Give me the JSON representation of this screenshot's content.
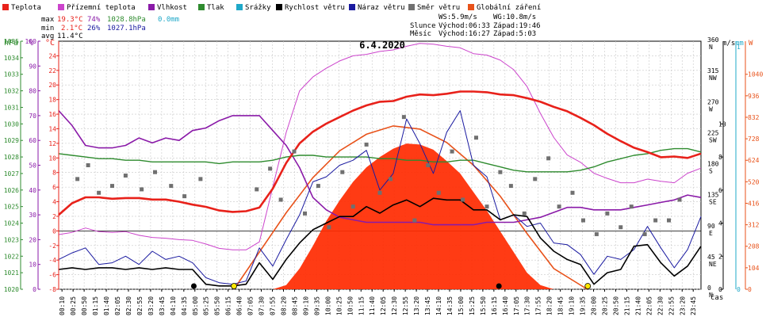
{
  "chart_data": {
    "type": "line",
    "title": "6.4.2020",
    "legend": [
      {
        "label": "Teplota",
        "color": "#e8211a"
      },
      {
        "label": "Přízemní teplota",
        "color": "#cc44cc"
      },
      {
        "label": "Vlhkost",
        "color": "#8a1aa8"
      },
      {
        "label": "Tlak",
        "color": "#2e8b2e"
      },
      {
        "label": "Srážky",
        "color": "#1fa8c8"
      },
      {
        "label": "Rychlost větru",
        "color": "#000000"
      },
      {
        "label": "Náraz větru",
        "color": "#1a1aa0"
      },
      {
        "label": "Směr větru",
        "color": "#707070"
      },
      {
        "label": "Globální záření",
        "color": "#e8521a"
      }
    ],
    "stats": {
      "max_label": "max",
      "min_label": "min",
      "avg_label": "avg",
      "temp_max": "19.3°C",
      "temp_min": "2.1°C",
      "temp_avg": "11.4°C",
      "hum_max": "74%",
      "hum_min": "26%",
      "press_max": "1028.8hPa",
      "press_min": "1027.1hPa",
      "rain": "0.0mm"
    },
    "wind_stats": {
      "ws": "WS:5.9m/s",
      "wg": "WG:10.8m/s"
    },
    "sun_moon": {
      "sun": "Slunce",
      "moon": "Měsíc",
      "sun_rise": "Východ:06:33",
      "sun_set": "Západ:19:46",
      "moon_rise": "Východ:16:27",
      "moon_set": "Západ:5:03"
    },
    "axis_units": {
      "hpa": "hPa",
      "pct": "%",
      "degc": "°C",
      "ms": "m/s",
      "mm": "mm",
      "watt": "W",
      "time": "čas"
    },
    "ylim_temp": [
      -8,
      26
    ],
    "ylim_pressure": [
      1020,
      1035
    ],
    "ylim_humidity": [
      0,
      100
    ],
    "ylim_wind": [
      0,
      15
    ],
    "ylim_direction": [
      0,
      360
    ],
    "ylim_radiation": [
      0,
      1200
    ],
    "temp_ticks": [
      "-8",
      "-6",
      "-4",
      "-2",
      "0",
      "2",
      "4",
      "6",
      "8",
      "10",
      "12",
      "14",
      "16",
      "18",
      "20",
      "22",
      "24"
    ],
    "pressure_ticks": [
      "1020",
      "1021",
      "1022",
      "1023",
      "1024",
      "1025",
      "1026",
      "1027",
      "1028",
      "1029",
      "1030",
      "1031",
      "1032",
      "1033",
      "1034",
      "1035"
    ],
    "humidity_ticks": [
      "0",
      "10",
      "20",
      "30",
      "40",
      "50",
      "60",
      "70",
      "80",
      "90",
      "100"
    ],
    "wind_ticks": [
      "0",
      "2",
      "4",
      "6",
      "8",
      "10"
    ],
    "mm_ticks": [
      "0",
      "1"
    ],
    "direction_ticks": [
      {
        "deg": "0",
        "dir": "N"
      },
      {
        "deg": "45",
        "dir": "NE"
      },
      {
        "deg": "90",
        "dir": "E"
      },
      {
        "deg": "135",
        "dir": "SE"
      },
      {
        "deg": "180",
        "dir": "S"
      },
      {
        "deg": "225",
        "dir": "SW"
      },
      {
        "deg": "270",
        "dir": "W"
      },
      {
        "deg": "315",
        "dir": "NW"
      },
      {
        "deg": "360",
        "dir": "N"
      }
    ],
    "radiation_ticks": [
      "0",
      "104",
      "208",
      "312",
      "416",
      "520",
      "624",
      "728",
      "832",
      "936",
      "1040"
    ],
    "time_labels": [
      "00:10",
      "00:25",
      "00:50",
      "01:15",
      "01:40",
      "02:05",
      "02:30",
      "02:55",
      "03:20",
      "03:45",
      "04:10",
      "04:35",
      "05:00",
      "05:25",
      "05:50",
      "06:15",
      "06:40",
      "07:05",
      "07:30",
      "07:55",
      "08:20",
      "08:45",
      "09:10",
      "09:35",
      "10:00",
      "10:25",
      "10:50",
      "11:15",
      "11:40",
      "12:05",
      "12:30",
      "12:55",
      "13:20",
      "13:45",
      "14:10",
      "14:35",
      "15:00",
      "15:25",
      "15:50",
      "16:15",
      "16:40",
      "17:05",
      "17:30",
      "17:55",
      "18:20",
      "18:45",
      "19:10",
      "19:35",
      "20:00",
      "20:25",
      "20:50",
      "21:15",
      "21:40",
      "22:05",
      "22:30",
      "22:55",
      "23:20",
      "23:45"
    ],
    "x_hours": [
      0,
      0.5,
      1,
      1.5,
      2,
      2.5,
      3,
      3.5,
      4,
      4.5,
      5,
      5.5,
      6,
      6.5,
      7,
      7.5,
      8,
      8.5,
      9,
      9.5,
      10,
      10.5,
      11,
      11.5,
      12,
      12.5,
      13,
      13.5,
      14,
      14.5,
      15,
      15.5,
      16,
      16.5,
      17,
      17.5,
      18,
      18.5,
      19,
      19.5,
      20,
      20.5,
      21,
      21.5,
      22,
      22.5,
      23,
      23.5,
      24
    ],
    "series": [
      {
        "name": "Teplota",
        "axis": "temp",
        "values": [
          2.2,
          3.8,
          4.6,
          4.6,
          4.4,
          4.5,
          4.5,
          4.3,
          4.3,
          4.0,
          3.6,
          3.3,
          2.8,
          2.6,
          2.7,
          3.2,
          5.8,
          9.3,
          12.0,
          13.6,
          14.7,
          15.6,
          16.5,
          17.2,
          17.7,
          17.8,
          18.4,
          18.7,
          18.6,
          18.8,
          19.1,
          19.1,
          19.0,
          18.7,
          18.6,
          18.2,
          17.7,
          17.0,
          16.4,
          15.5,
          14.5,
          13.3,
          12.3,
          11.4,
          10.8,
          10.1,
          10.2,
          10.0,
          10.6
        ]
      },
      {
        "name": "Přízemní teplota",
        "axis": "temp",
        "values": [
          -0.5,
          -0.2,
          0.4,
          -0.1,
          -0.2,
          -0.1,
          -0.6,
          -0.9,
          -1.0,
          -1.2,
          -1.3,
          -1.8,
          -2.4,
          -2.6,
          -2.6,
          -1.5,
          6.0,
          13.5,
          19.2,
          21.1,
          22.3,
          23.3,
          24.0,
          24.2,
          24.6,
          24.8,
          25.3,
          25.7,
          25.6,
          25.3,
          25.1,
          24.3,
          24.1,
          23.4,
          22.1,
          19.8,
          16.1,
          12.8,
          10.4,
          9.4,
          7.9,
          7.2,
          6.6,
          6.6,
          7.1,
          6.8,
          6.6,
          7.9,
          8.6
        ]
      },
      {
        "name": "Vlhkost",
        "axis": "hum",
        "values": [
          72,
          66,
          58,
          57,
          57,
          58,
          61,
          59,
          61,
          60,
          64,
          65,
          68,
          70,
          70,
          70,
          64,
          58,
          49,
          37,
          32,
          29,
          28,
          27,
          27,
          27,
          27,
          27,
          26,
          26,
          26,
          26,
          27,
          27,
          27,
          28,
          29,
          31,
          33,
          33,
          32,
          32,
          32,
          33,
          34,
          35,
          36,
          38,
          37
        ]
      },
      {
        "name": "Tlak",
        "axis": "hpa",
        "values": [
          1028.2,
          1028.1,
          1028.0,
          1027.9,
          1027.9,
          1027.8,
          1027.8,
          1027.7,
          1027.7,
          1027.7,
          1027.7,
          1027.7,
          1027.6,
          1027.7,
          1027.7,
          1027.7,
          1027.8,
          1028.0,
          1028.1,
          1028.1,
          1028.0,
          1028.0,
          1028.0,
          1028.0,
          1027.9,
          1027.9,
          1027.8,
          1027.8,
          1027.7,
          1027.7,
          1027.8,
          1027.8,
          1027.6,
          1027.4,
          1027.2,
          1027.1,
          1027.1,
          1027.1,
          1027.1,
          1027.2,
          1027.4,
          1027.7,
          1027.9,
          1028.1,
          1028.2,
          1028.4,
          1028.5,
          1028.5,
          1028.3
        ]
      },
      {
        "name": "Rychlost větru",
        "axis": "wind",
        "values": [
          1.2,
          1.3,
          1.2,
          1.3,
          1.3,
          1.2,
          1.3,
          1.2,
          1.3,
          1.2,
          1.2,
          0.3,
          0.2,
          0.2,
          0.3,
          1.6,
          0.6,
          1.8,
          2.8,
          3.6,
          4.0,
          4.4,
          4.4,
          5.0,
          4.6,
          5.1,
          5.4,
          5.0,
          5.5,
          5.4,
          5.4,
          4.8,
          4.8,
          4.2,
          4.5,
          4.4,
          3.1,
          2.3,
          1.8,
          1.5,
          0.3,
          1.0,
          1.2,
          2.6,
          2.7,
          1.6,
          0.8,
          1.4,
          2.6
        ]
      },
      {
        "name": "Náraz větru",
        "axis": "wind",
        "values": [
          1.8,
          2.2,
          2.5,
          1.5,
          1.6,
          2.0,
          1.5,
          2.3,
          1.8,
          2.0,
          1.6,
          0.7,
          0.4,
          0.3,
          0.5,
          2.5,
          1.4,
          3.0,
          4.5,
          6.5,
          6.8,
          7.5,
          7.8,
          8.4,
          6.0,
          7.0,
          10.3,
          8.8,
          7.0,
          9.5,
          10.8,
          7.5,
          6.8,
          4.2,
          4.5,
          3.8,
          4.0,
          2.8,
          2.7,
          2.1,
          0.9,
          2.0,
          1.8,
          2.4,
          3.8,
          2.5,
          1.3,
          2.4,
          4.4
        ]
      },
      {
        "name": "Globální záření",
        "axis": "rad",
        "values": [
          0,
          0,
          0,
          0,
          0,
          0,
          0,
          0,
          0,
          0,
          0,
          0,
          0,
          0,
          0,
          0,
          0,
          20,
          100,
          210,
          330,
          430,
          520,
          590,
          640,
          680,
          705,
          700,
          675,
          620,
          560,
          470,
          380,
          280,
          180,
          80,
          20,
          0,
          0,
          0,
          0,
          0,
          0,
          0,
          0,
          0,
          0,
          0,
          0
        ]
      }
    ],
    "wind_direction": {
      "x": [
        0.7,
        1.1,
        1.5,
        2.0,
        2.5,
        3.1,
        3.6,
        4.2,
        4.7,
        5.3,
        7.4,
        7.9,
        8.3,
        8.8,
        9.2,
        9.7,
        10.1,
        10.6,
        11.0,
        11.5,
        12.0,
        12.4,
        12.9,
        13.3,
        13.8,
        14.2,
        14.7,
        15.1,
        15.6,
        16.0,
        16.5,
        16.9,
        17.4,
        17.8,
        18.3,
        18.7,
        19.2,
        19.6,
        20.1,
        20.5,
        21.0,
        21.4,
        21.9,
        22.3,
        22.8,
        23.2
      ],
      "deg": [
        160,
        180,
        140,
        150,
        165,
        145,
        170,
        150,
        135,
        160,
        145,
        175,
        130,
        200,
        110,
        150,
        90,
        170,
        120,
        210,
        140,
        160,
        250,
        100,
        180,
        140,
        200,
        130,
        220,
        120,
        170,
        150,
        110,
        160,
        190,
        120,
        140,
        100,
        80,
        110,
        90,
        120,
        80,
        100,
        100,
        130
      ]
    },
    "clear_sky_radiation": {
      "x": [
        6.55,
        7.5,
        8.5,
        9.5,
        10.5,
        11.5,
        12.5,
        13.5,
        14.5,
        15.5,
        16.5,
        17.5,
        18.5,
        19.75
      ],
      "values": [
        0,
        180,
        370,
        540,
        670,
        750,
        790,
        775,
        710,
        600,
        450,
        270,
        100,
        0
      ]
    },
    "events": {
      "sunrise_h": 6.55,
      "sunset_h": 19.77,
      "moonrise_h": 16.45,
      "moonset_h": 5.05
    }
  }
}
